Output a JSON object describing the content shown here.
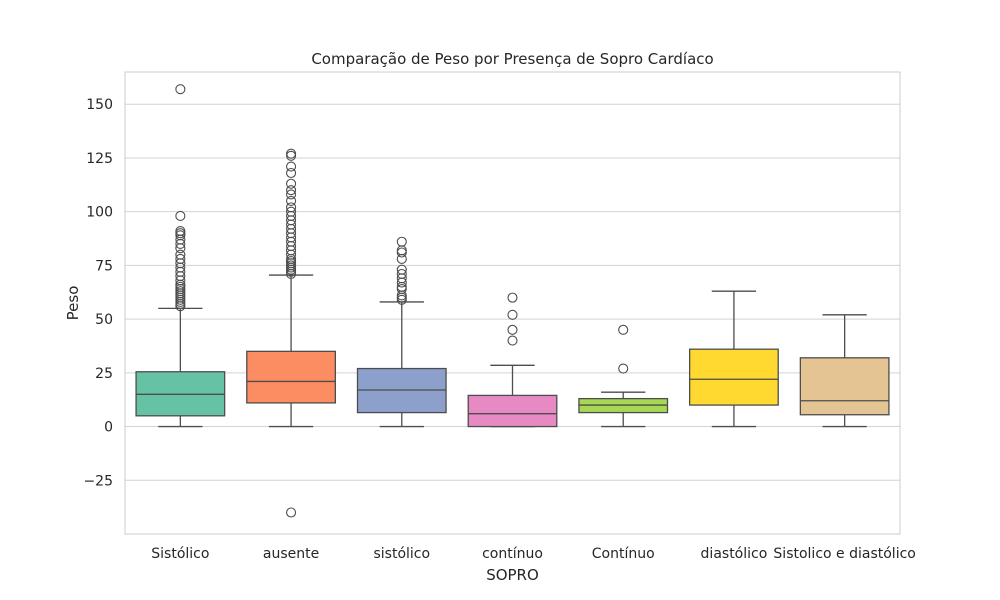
{
  "chart_data": {
    "type": "box",
    "title": "Comparação de Peso por Presença de Sopro Cardíaco",
    "xlabel": "SOPRO",
    "ylabel": "Peso",
    "ylim": [
      -50,
      165
    ],
    "yticks": [
      -25,
      0,
      25,
      50,
      75,
      100,
      125,
      150
    ],
    "ytick_labels": [
      "−25",
      "0",
      "25",
      "50",
      "75",
      "100",
      "125",
      "150"
    ],
    "grid": true,
    "categories": [
      "Sistólico",
      "ausente",
      "sistólico",
      "contínuo",
      "Contínuo",
      "diastólico",
      "Sistolico e diastólico"
    ],
    "boxes": [
      {
        "category": "Sistólico",
        "color": "#66c2a5",
        "whisker_low": 0,
        "q1": 5,
        "median": 15,
        "q3": 25.5,
        "whisker_high": 55,
        "outliers": [
          157,
          98,
          91,
          90,
          89,
          87,
          85,
          83,
          80,
          78,
          76,
          74,
          72,
          70,
          68,
          66,
          65,
          64,
          63,
          62,
          61,
          60,
          59,
          58,
          57,
          56
        ]
      },
      {
        "category": "ausente",
        "color": "#fc8d62",
        "whisker_low": 0,
        "q1": 11,
        "median": 21,
        "q3": 35,
        "whisker_high": 70.5,
        "outliers": [
          -40,
          127,
          126,
          121,
          118,
          113,
          110,
          108,
          105,
          102,
          100,
          98,
          96,
          94,
          92,
          90,
          88,
          86,
          84,
          82,
          80,
          78,
          77,
          76,
          75,
          74,
          73,
          72,
          71
        ]
      },
      {
        "category": "sistólico",
        "color": "#8da0cb",
        "whisker_low": 0,
        "q1": 6.5,
        "median": 17,
        "q3": 27,
        "whisker_high": 58,
        "outliers": [
          86,
          82,
          81,
          78,
          73,
          71,
          69,
          67,
          65,
          64,
          61,
          60,
          59
        ]
      },
      {
        "category": "contínuo",
        "color": "#e78ac3",
        "whisker_low": 0,
        "q1": 0,
        "median": 6,
        "q3": 14.5,
        "whisker_high": 28.5,
        "outliers": [
          60,
          52,
          45,
          40
        ]
      },
      {
        "category": "Contínuo",
        "color": "#a6d854",
        "whisker_low": 0,
        "q1": 6.5,
        "median": 10,
        "q3": 13,
        "whisker_high": 16,
        "outliers": [
          45,
          27
        ]
      },
      {
        "category": "diastólico",
        "color": "#ffd92f",
        "whisker_low": 0,
        "q1": 10,
        "median": 22,
        "q3": 36,
        "whisker_high": 63,
        "outliers": []
      },
      {
        "category": "Sistolico e diastólico",
        "color": "#e5c494",
        "whisker_low": 0,
        "q1": 5.5,
        "median": 12,
        "q3": 32,
        "whisker_high": 52,
        "outliers": []
      }
    ]
  }
}
